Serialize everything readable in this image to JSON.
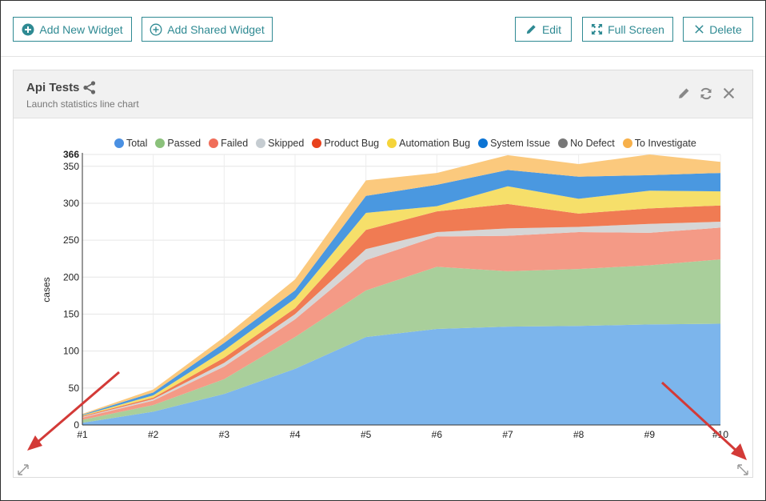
{
  "toolbar": {
    "add_widget": "Add New Widget",
    "add_shared": "Add Shared Widget",
    "edit": "Edit",
    "full_screen": "Full Screen",
    "delete": "Delete"
  },
  "widget": {
    "title": "Api Tests",
    "subtitle": "Launch statistics line chart"
  },
  "colors": {
    "accent": "#2f8a93",
    "annotation_arrow": "#d33a37"
  },
  "chart_data": {
    "type": "area",
    "stacked": true,
    "title": "",
    "xlabel": "",
    "ylabel": "cases",
    "ylim": [
      0,
      366
    ],
    "yticks": [
      0,
      50,
      100,
      150,
      200,
      250,
      300,
      350
    ],
    "ymax_label": "366",
    "categories": [
      "#1",
      "#2",
      "#3",
      "#4",
      "#5",
      "#6",
      "#7",
      "#8",
      "#9",
      "#10"
    ],
    "legend_position": "top",
    "series": [
      {
        "name": "Total",
        "color": "#4a90e2",
        "fill": "#7cb5ec",
        "values": [
          3,
          18,
          42,
          76,
          119,
          130,
          133,
          134,
          136,
          137
        ]
      },
      {
        "name": "Passed",
        "color": "#8bc17b",
        "fill": "#a9cf9b",
        "values": [
          4,
          9,
          20,
          43,
          63,
          84,
          75,
          77,
          80,
          87
        ]
      },
      {
        "name": "Failed",
        "color": "#f06e5a",
        "fill": "#f49a86",
        "values": [
          3,
          6,
          17,
          24,
          41,
          41,
          48,
          50,
          44,
          43
        ]
      },
      {
        "name": "Skipped",
        "color": "#c5ccd1",
        "fill": "#d6d6d6",
        "values": [
          1,
          2,
          5,
          7,
          15,
          6,
          10,
          7,
          12,
          8
        ]
      },
      {
        "name": "Product Bug",
        "color": "#e8411c",
        "fill": "#f07b53",
        "values": [
          1,
          2,
          7,
          8,
          26,
          28,
          33,
          18,
          21,
          22
        ]
      },
      {
        "name": "Automation Bug",
        "color": "#f5d43a",
        "fill": "#f6df6a",
        "values": [
          1,
          3,
          10,
          13,
          23,
          7,
          24,
          20,
          24,
          19
        ]
      },
      {
        "name": "System Issue",
        "color": "#0c74d4",
        "fill": "#4a98e0",
        "values": [
          1,
          4,
          10,
          11,
          23,
          29,
          22,
          30,
          21,
          25
        ]
      },
      {
        "name": "No Defect",
        "color": "#777777",
        "fill": "#8a8a8a",
        "values": [
          0,
          0,
          0,
          0,
          0,
          0,
          0,
          0,
          0,
          0
        ]
      },
      {
        "name": "To Investigate",
        "color": "#f7b04a",
        "fill": "#fbc97d",
        "values": [
          1,
          4,
          8,
          15,
          21,
          16,
          20,
          17,
          28,
          15
        ]
      }
    ]
  }
}
